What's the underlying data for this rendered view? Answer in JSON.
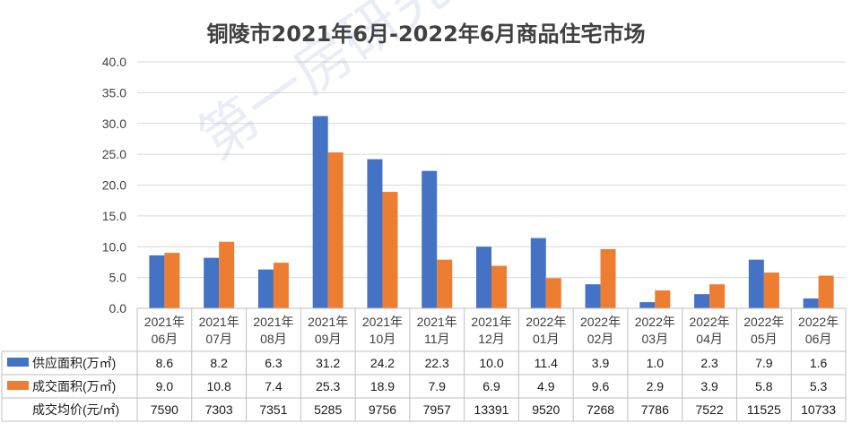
{
  "title": "铜陵市2021年6月-2022年6月商品住宅市场",
  "watermark": "第一房研究院",
  "colors": {
    "supply": "#4472C4",
    "sales": "#ED7D31",
    "grid": "#D9D9D9",
    "border": "#BFBFBF"
  },
  "chart_data": {
    "type": "bar",
    "title": "铜陵市2021年6月-2022年6月商品住宅市场",
    "categories": [
      [
        "2021年",
        "06月"
      ],
      [
        "2021年",
        "07月"
      ],
      [
        "2021年",
        "08月"
      ],
      [
        "2021年",
        "09月"
      ],
      [
        "2021年",
        "10月"
      ],
      [
        "2021年",
        "11月"
      ],
      [
        "2021年",
        "12月"
      ],
      [
        "2022年",
        "01月"
      ],
      [
        "2022年",
        "02月"
      ],
      [
        "2022年",
        "03月"
      ],
      [
        "2022年",
        "04月"
      ],
      [
        "2022年",
        "05月"
      ],
      [
        "2022年",
        "06月"
      ]
    ],
    "ylim": [
      0,
      40
    ],
    "yticks": [
      "0.0",
      "5.0",
      "10.0",
      "15.0",
      "20.0",
      "25.0",
      "30.0",
      "35.0",
      "40.0"
    ],
    "grid": true,
    "series": [
      {
        "name": "供应面积(万㎡)",
        "values": [
          8.6,
          8.2,
          6.3,
          31.2,
          24.2,
          22.3,
          10.0,
          11.4,
          3.9,
          1.0,
          2.3,
          7.9,
          1.6
        ],
        "labels": [
          "8.6",
          "8.2",
          "6.3",
          "31.2",
          "24.2",
          "22.3",
          "10.0",
          "11.4",
          "3.9",
          "1.0",
          "2.3",
          "7.9",
          "1.6"
        ]
      },
      {
        "name": "成交面积(万㎡)",
        "values": [
          9.0,
          10.8,
          7.4,
          25.3,
          18.9,
          7.9,
          6.9,
          4.9,
          9.6,
          2.9,
          3.9,
          5.8,
          5.3
        ],
        "labels": [
          "9.0",
          "10.8",
          "7.4",
          "25.3",
          "18.9",
          "7.9",
          "6.9",
          "4.9",
          "9.6",
          "2.9",
          "3.9",
          "5.8",
          "5.3"
        ]
      }
    ],
    "table_rows": [
      {
        "label": "供应面积(万㎡)",
        "marker": "supply",
        "values": [
          "8.6",
          "8.2",
          "6.3",
          "31.2",
          "24.2",
          "22.3",
          "10.0",
          "11.4",
          "3.9",
          "1.0",
          "2.3",
          "7.9",
          "1.6"
        ]
      },
      {
        "label": "成交面积(万㎡)",
        "marker": "sales",
        "values": [
          "9.0",
          "10.8",
          "7.4",
          "25.3",
          "18.9",
          "7.9",
          "6.9",
          "4.9",
          "9.6",
          "2.9",
          "3.9",
          "5.8",
          "5.3"
        ]
      },
      {
        "label": "成交均价(元/㎡)",
        "marker": "none",
        "values": [
          "7590",
          "7303",
          "7351",
          "5285",
          "9756",
          "7957",
          "13391",
          "9520",
          "7268",
          "7786",
          "7522",
          "11525",
          "10733"
        ]
      }
    ]
  }
}
